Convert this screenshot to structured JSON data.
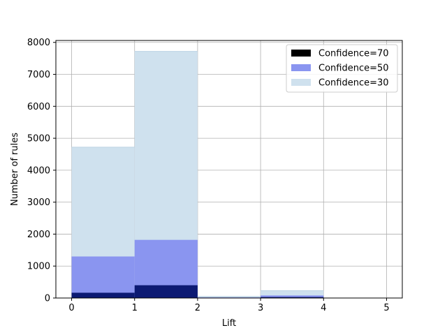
{
  "chart_data": {
    "type": "bar",
    "subtype": "overlaid-histogram",
    "title": "",
    "xlabel": "Lift",
    "ylabel": "Number of rules",
    "xlim": [
      -0.25,
      5.25
    ],
    "ylim": [
      0,
      8060
    ],
    "xticks": [
      0,
      1,
      2,
      3,
      4,
      5
    ],
    "yticks": [
      0,
      1000,
      2000,
      3000,
      4000,
      5000,
      6000,
      7000,
      8000
    ],
    "bin_edges": [
      0,
      1,
      2,
      3,
      4,
      5
    ],
    "grid": true,
    "legend_position": "top-right",
    "series": [
      {
        "name": "Confidence=30",
        "color": "#cfe1ee",
        "values": [
          4720,
          7720,
          50,
          230,
          0
        ]
      },
      {
        "name": "Confidence=50",
        "color": "#8a95f0",
        "values": [
          1300,
          1820,
          20,
          80,
          0
        ]
      },
      {
        "name": "Confidence=70",
        "color": "#000000",
        "values": [
          165,
          400,
          0,
          30,
          0
        ]
      }
    ],
    "legend_order": [
      "Confidence=70",
      "Confidence=50",
      "Confidence=30"
    ],
    "overlap_color": "#0c1a73"
  }
}
